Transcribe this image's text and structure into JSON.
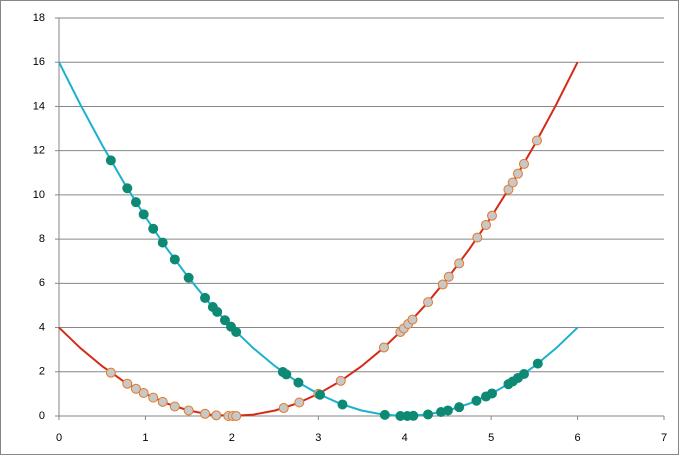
{
  "chart_data": {
    "type": "scatter",
    "xlim": [
      0,
      7
    ],
    "xticks": [
      0,
      1,
      2,
      3,
      4,
      5,
      6,
      7
    ],
    "ylim": [
      0,
      18
    ],
    "yticks": [
      0,
      2,
      4,
      6,
      8,
      10,
      12,
      14,
      16,
      18
    ],
    "grid": true,
    "series": [
      {
        "kind": "line",
        "color": "#d42a1a",
        "x": [
          0,
          0.25,
          0.5,
          0.75,
          1,
          1.25,
          1.5,
          1.75,
          2,
          2.25,
          2.5,
          2.75,
          3,
          3.25,
          3.5,
          3.75,
          4,
          4.25,
          4.5,
          4.75,
          5,
          5.25,
          5.5,
          5.75,
          6
        ],
        "values": [
          4,
          3.0625,
          2.25,
          1.5625,
          1,
          0.5625,
          0.25,
          0.0625,
          0,
          0.0625,
          0.25,
          0.5625,
          1,
          1.5625,
          2.25,
          3.0625,
          4,
          5.0625,
          6.25,
          7.5625,
          9,
          10.5625,
          12.25,
          14.0625,
          16
        ]
      },
      {
        "kind": "line",
        "color": "#1ab0d2",
        "x": [
          0,
          0.25,
          0.5,
          0.75,
          1,
          1.25,
          1.5,
          1.75,
          2,
          2.25,
          2.5,
          2.75,
          3,
          3.25,
          3.5,
          3.75,
          4,
          4.25,
          4.5,
          4.75,
          5,
          5.25,
          5.5,
          5.75,
          6
        ],
        "values": [
          16,
          14.0625,
          12.25,
          10.5625,
          9,
          7.5625,
          6.25,
          5.0625,
          4,
          3.0625,
          2.25,
          1.5625,
          1,
          0.5625,
          0.25,
          0.0625,
          0,
          0.0625,
          0.25,
          0.5625,
          1,
          1.5625,
          2.25,
          3.0625,
          4
        ]
      },
      {
        "kind": "marker",
        "color": "#c8c8c8",
        "edge_color": "#e07a2a",
        "x": [
          0.6,
          0.79,
          0.89,
          0.98,
          1.09,
          1.2,
          1.34,
          1.5,
          1.69,
          1.82,
          1.96,
          2.01,
          2.05,
          2.6,
          2.78,
          3.0,
          3.26,
          3.76,
          3.95,
          3.99,
          4.04,
          4.09,
          4.27,
          4.44,
          4.51,
          4.63,
          4.84,
          4.94,
          5.01,
          5.2,
          5.25,
          5.31,
          5.38,
          5.53
        ],
        "values": [
          1.96,
          1.46,
          1.23,
          1.04,
          0.83,
          0.64,
          0.43,
          0.25,
          0.1,
          0.03,
          0,
          0,
          0,
          0.36,
          0.61,
          1.0,
          1.59,
          3.1,
          3.8,
          3.96,
          4.16,
          4.36,
          5.15,
          5.95,
          6.3,
          6.9,
          8.07,
          8.64,
          9.06,
          10.24,
          10.56,
          10.96,
          11.4,
          12.46
        ]
      },
      {
        "kind": "marker",
        "color": "#0e8a74",
        "edge_color": "#0e8a74",
        "x": [
          0.6,
          0.79,
          0.89,
          0.98,
          1.09,
          1.2,
          1.34,
          1.5,
          1.69,
          1.78,
          1.83,
          1.92,
          1.99,
          2.05,
          2.59,
          2.63,
          2.77,
          3.02,
          3.28,
          3.77,
          3.95,
          4.03,
          4.1,
          4.27,
          4.42,
          4.5,
          4.63,
          4.83,
          4.94,
          5.01,
          5.2,
          5.25,
          5.31,
          5.38,
          5.54
        ],
        "values": [
          11.56,
          10.3,
          9.67,
          9.12,
          8.47,
          7.84,
          7.08,
          6.25,
          5.34,
          4.93,
          4.71,
          4.33,
          4.04,
          3.8,
          1.99,
          1.88,
          1.51,
          0.96,
          0.52,
          0.05,
          0,
          0,
          0.01,
          0.07,
          0.18,
          0.25,
          0.4,
          0.69,
          0.88,
          1.02,
          1.44,
          1.56,
          1.72,
          1.9,
          2.37
        ]
      }
    ]
  }
}
